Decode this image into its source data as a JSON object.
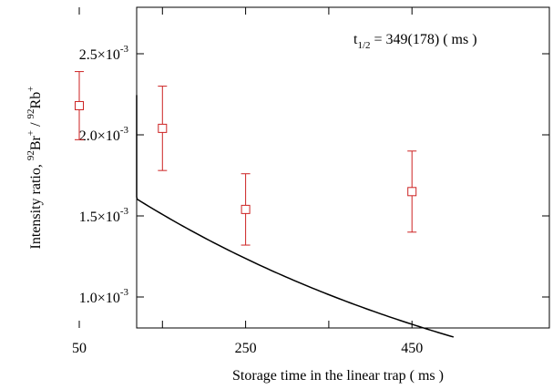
{
  "chart_data": {
    "type": "scatter",
    "xlabel": "Storage time in the linear trap ( ms )",
    "ylabel": {
      "prefix": "Intensity ratio, ",
      "num_mass": "92",
      "num_elem": "Br",
      "num_charge": "+",
      "sep": " / ",
      "den_mass": "92",
      "den_elem": "Rb",
      "den_charge": "+"
    },
    "xlim": [
      -50,
      500
    ],
    "ylim": [
      0.0008,
      0.0028
    ],
    "x_ticks": [
      50,
      150,
      250,
      350,
      450
    ],
    "x_tick_labels": [
      "50",
      "",
      "250",
      "",
      "450"
    ],
    "y_ticks": [
      0.001,
      0.0015,
      0.002,
      0.0025
    ],
    "y_tick_labels": [
      {
        "mant": "1.0×10",
        "exp": "-3"
      },
      {
        "mant": "1.5×10",
        "exp": "-3"
      },
      {
        "mant": "2.0×10",
        "exp": "-3"
      },
      {
        "mant": "2.5×10",
        "exp": "-3"
      }
    ],
    "grid": false,
    "points": [
      {
        "x": 50,
        "y": 0.00218,
        "y_low": 0.00197,
        "y_high": 0.00239
      },
      {
        "x": 150,
        "y": 0.00204,
        "y_low": 0.00178,
        "y_high": 0.0023
      },
      {
        "x": 250,
        "y": 0.00154,
        "y_low": 0.00132,
        "y_high": 0.00176
      },
      {
        "x": 450,
        "y": 0.00165,
        "y_low": 0.0014,
        "y_high": 0.0019
      }
    ],
    "fit": {
      "model": "exponential decay",
      "amplitude_at_x0": 0.002245,
      "x0": -50,
      "half_life_ms": 349,
      "x_range": [
        -50,
        500
      ]
    },
    "annotation": {
      "t_main": "t",
      "t_sub": "1/2",
      "text": " = 349(178) ( ms )"
    },
    "colors": {
      "data": "#cc2222",
      "fit": "#000000",
      "axes": "#000000"
    }
  }
}
